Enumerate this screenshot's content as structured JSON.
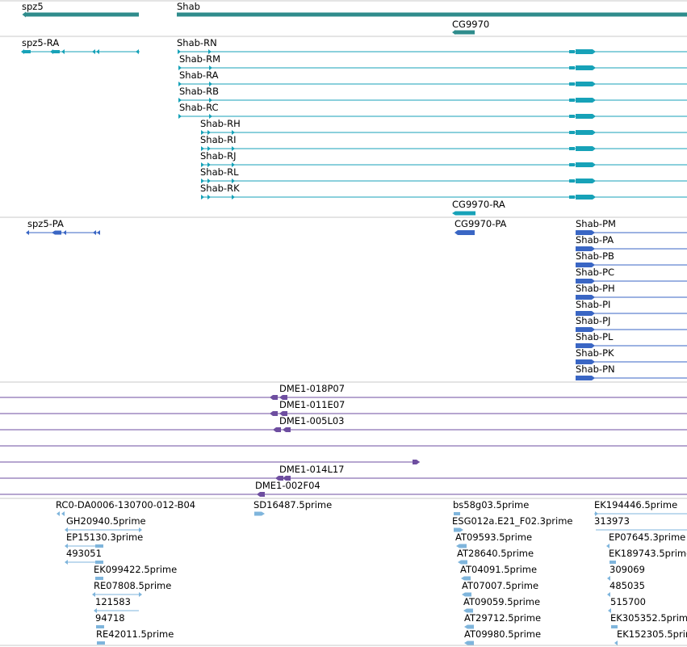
{
  "colors": {
    "gene": "#2f8c8c",
    "transcript": "#17a2b8",
    "protein": "#3a66c4",
    "clone": "#6e4ea0",
    "est": "#7fb5dc",
    "divider": "#c8c8c8"
  },
  "tracks": {
    "genes": {
      "features": [
        {
          "name": "spz5",
          "strand": "-"
        },
        {
          "name": "Shab",
          "strand": "+"
        },
        {
          "name": "CG9970",
          "strand": "-"
        }
      ]
    },
    "transcripts": {
      "features": [
        {
          "name": "spz5-RA",
          "strand": "-"
        },
        {
          "name": "Shab-RN",
          "strand": "+"
        },
        {
          "name": "Shab-RM",
          "strand": "+"
        },
        {
          "name": "Shab-RA",
          "strand": "+"
        },
        {
          "name": "Shab-RB",
          "strand": "+"
        },
        {
          "name": "Shab-RC",
          "strand": "+"
        },
        {
          "name": "Shab-RH",
          "strand": "+"
        },
        {
          "name": "Shab-RI",
          "strand": "+"
        },
        {
          "name": "Shab-RJ",
          "strand": "+"
        },
        {
          "name": "Shab-RL",
          "strand": "+"
        },
        {
          "name": "Shab-RK",
          "strand": "+"
        },
        {
          "name": "CG9970-RA",
          "strand": "-"
        }
      ]
    },
    "proteins": {
      "features": [
        {
          "name": "spz5-PA",
          "strand": "-"
        },
        {
          "name": "CG9970-PA",
          "strand": "-"
        },
        {
          "name": "Shab-PM",
          "strand": "+"
        },
        {
          "name": "Shab-PA",
          "strand": "+"
        },
        {
          "name": "Shab-PB",
          "strand": "+"
        },
        {
          "name": "Shab-PC",
          "strand": "+"
        },
        {
          "name": "Shab-PH",
          "strand": "+"
        },
        {
          "name": "Shab-PI",
          "strand": "+"
        },
        {
          "name": "Shab-PJ",
          "strand": "+"
        },
        {
          "name": "Shab-PL",
          "strand": "+"
        },
        {
          "name": "Shab-PK",
          "strand": "+"
        },
        {
          "name": "Shab-PN",
          "strand": "+"
        }
      ]
    },
    "clones": {
      "features": [
        {
          "name": "DME1-018P07"
        },
        {
          "name": "DME1-011E07"
        },
        {
          "name": "DME1-005L03"
        },
        {
          "name": ""
        },
        {
          "name": ""
        },
        {
          "name": "DME1-014L17"
        },
        {
          "name": "DME1-002F04"
        }
      ]
    },
    "ests": {
      "features": [
        {
          "name": "RC0-DA0006-130700-012-B04"
        },
        {
          "name": "GH20940.5prime"
        },
        {
          "name": "EP15130.3prime"
        },
        {
          "name": "493051"
        },
        {
          "name": "EK099422.5prime"
        },
        {
          "name": "RE07808.5prime"
        },
        {
          "name": "121583"
        },
        {
          "name": "94718"
        },
        {
          "name": "RE42011.5prime"
        },
        {
          "name": "SD16487.5prime"
        },
        {
          "name": "bs58g03.5prime"
        },
        {
          "name": "ESG012a.E21_F02.3prime"
        },
        {
          "name": "AT09593.5prime"
        },
        {
          "name": "AT28640.5prime"
        },
        {
          "name": "AT04091.5prime"
        },
        {
          "name": "AT07007.5prime"
        },
        {
          "name": "AT09059.5prime"
        },
        {
          "name": "AT29712.5prime"
        },
        {
          "name": "AT09980.5prime"
        },
        {
          "name": "EK194446.5prime"
        },
        {
          "name": "313973"
        },
        {
          "name": "EP07645.3prime"
        },
        {
          "name": "EK189743.5prime"
        },
        {
          "name": "309069"
        },
        {
          "name": "485035"
        },
        {
          "name": "515700"
        },
        {
          "name": "EK305352.5prime"
        },
        {
          "name": "EK152305.5prime"
        }
      ]
    }
  }
}
